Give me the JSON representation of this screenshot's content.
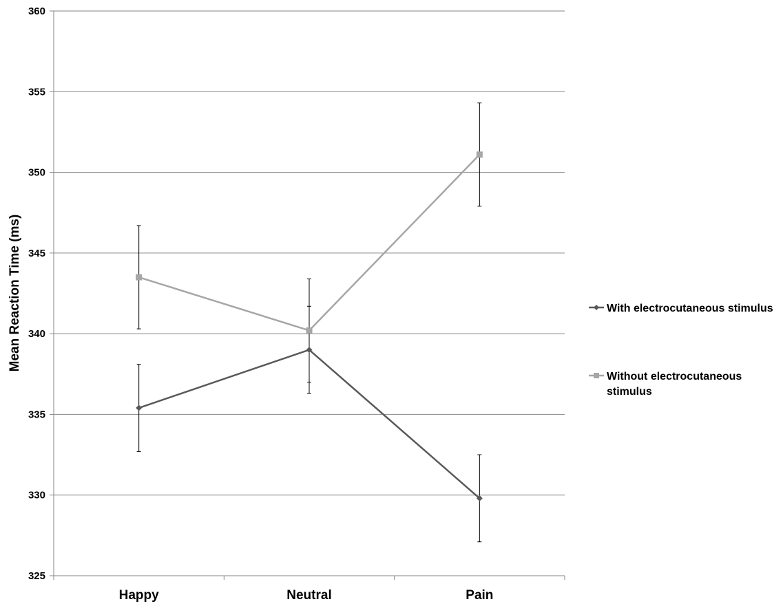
{
  "chart_data": {
    "type": "line",
    "title": "",
    "xlabel": "",
    "ylabel": "Mean Reaction Time (ms)",
    "categories": [
      "Happy",
      "Neutral",
      "Pain"
    ],
    "ylim": [
      325,
      360
    ],
    "yticks": [
      325,
      330,
      335,
      340,
      345,
      350,
      355,
      360
    ],
    "grid": true,
    "legend_position": "right",
    "series": [
      {
        "name": "With electrocutaneous stimulus",
        "values": [
          335.4,
          339.0,
          329.8
        ],
        "error": [
          2.7,
          2.7,
          2.7
        ],
        "marker": "diamond",
        "color": "#595959"
      },
      {
        "name": "Without electrocutaneous stimulus",
        "values": [
          343.5,
          340.2,
          351.1
        ],
        "error": [
          3.2,
          3.2,
          3.2
        ],
        "marker": "square",
        "color": "#a6a6a6"
      }
    ]
  }
}
